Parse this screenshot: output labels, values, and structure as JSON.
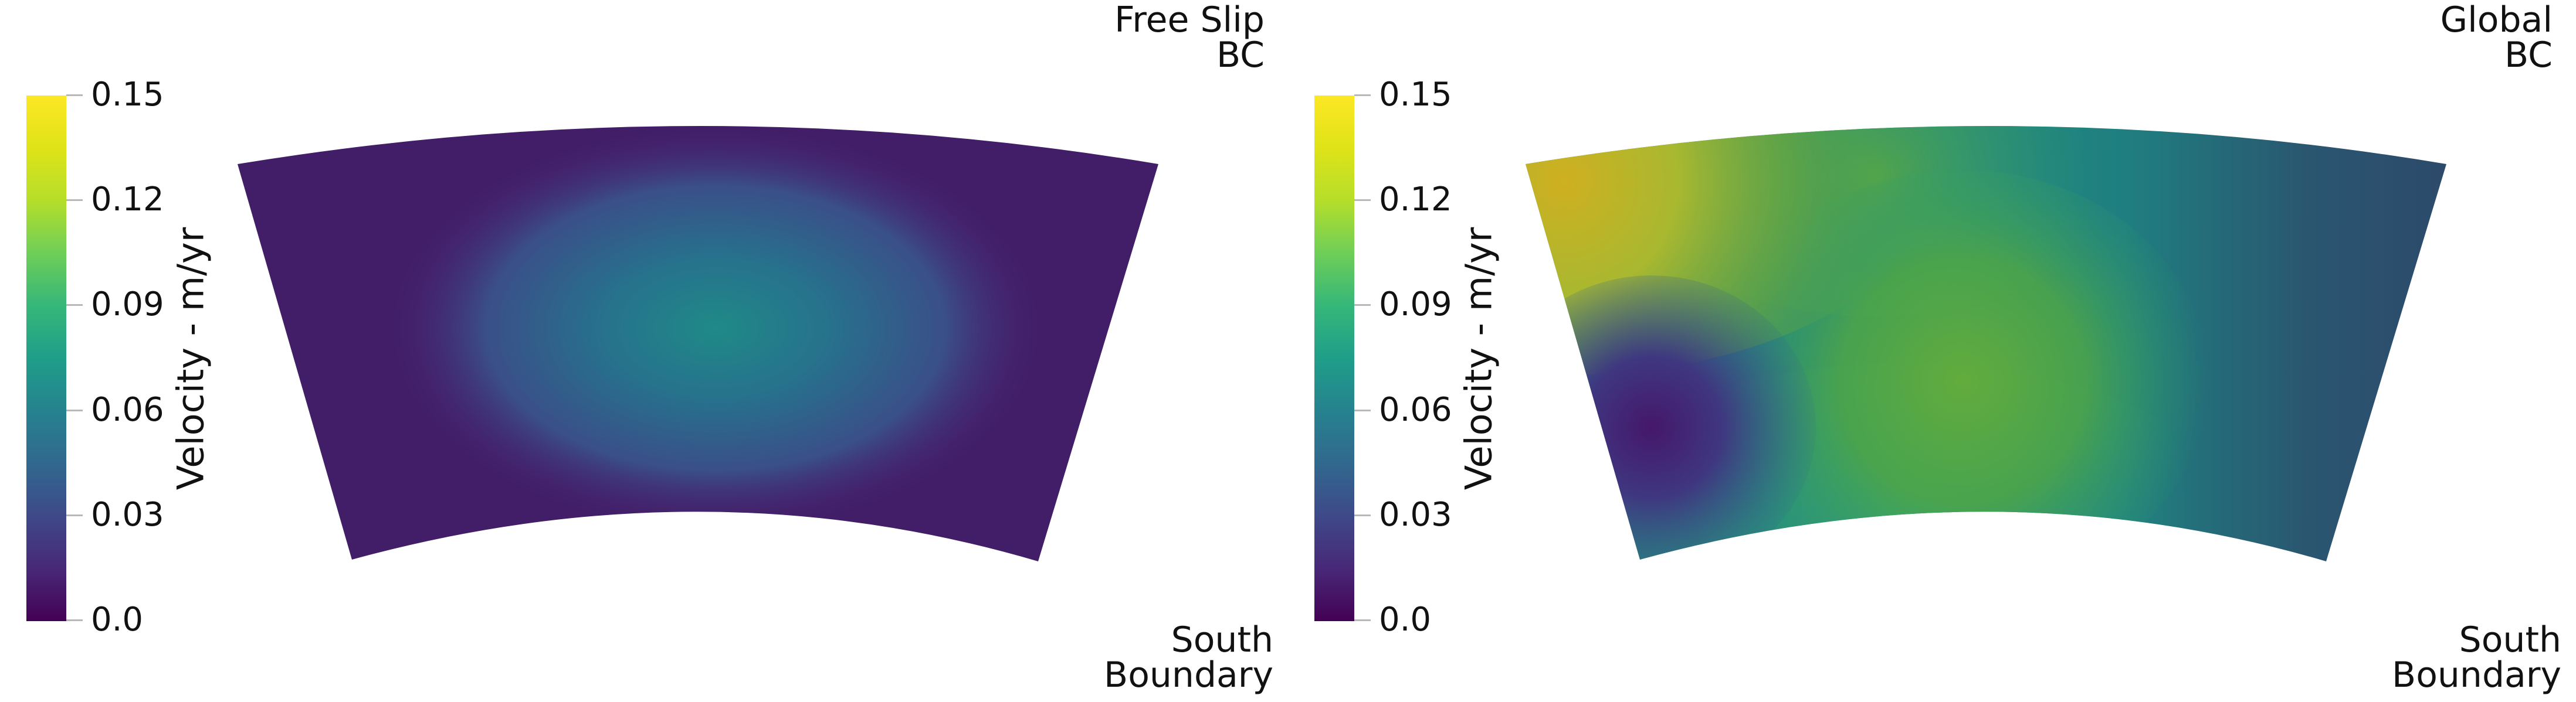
{
  "panels": [
    {
      "colorbar": {
        "title": "Velocity - m/yr",
        "ticks": [
          "0.15",
          "0.12",
          "0.09",
          "0.06",
          "0.03",
          "0.0"
        ],
        "range": [
          0.0,
          0.15
        ],
        "colormap": "viridis"
      },
      "label_top": [
        "Free Slip",
        "BC"
      ],
      "label_bottom": [
        "South",
        "Boundary"
      ]
    },
    {
      "colorbar": {
        "title": "Velocity - m/yr",
        "ticks": [
          "0.15",
          "0.12",
          "0.09",
          "0.06",
          "0.03",
          "0.0"
        ],
        "range": [
          0.0,
          0.15
        ],
        "colormap": "viridis"
      },
      "label_top": [
        "Global",
        "BC"
      ],
      "label_bottom": [
        "South",
        "Boundary"
      ]
    }
  ]
}
